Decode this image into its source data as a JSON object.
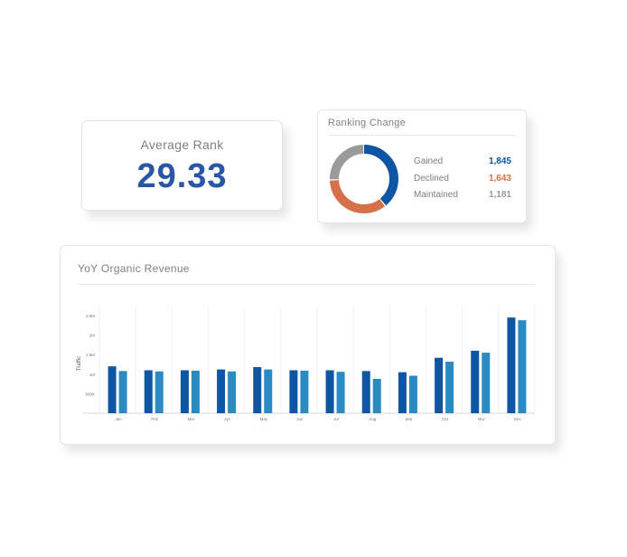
{
  "average_rank": {
    "title": "Average Rank",
    "value": "29.33"
  },
  "ranking_change": {
    "title": "Ranking Change",
    "items": [
      {
        "label": "Gained",
        "value": "1,845",
        "count": 1845,
        "color": "#0e55a4"
      },
      {
        "label": "Declined",
        "value": "1,643",
        "count": 1643,
        "color": "#d4714a"
      },
      {
        "label": "Maintained",
        "value": "1,181",
        "count": 1181,
        "color": "#9a9a9a"
      }
    ]
  },
  "revenue": {
    "title": "YoY Organic Revenue"
  },
  "chart_data": [
    {
      "type": "pie",
      "style": "donut",
      "title": "Ranking Change",
      "categories": [
        "Gained",
        "Declined",
        "Maintained"
      ],
      "values": [
        1845,
        1643,
        1181
      ],
      "colors": [
        "#0e55a4",
        "#d4714a",
        "#9a9a9a"
      ]
    },
    {
      "type": "bar",
      "title": "YoY Organic Revenue",
      "xlabel": "",
      "ylabel": "Traffic",
      "categories": [
        "Jan",
        "Feb",
        "Mar",
        "Apr",
        "May",
        "Jun",
        "Jul",
        "Aug",
        "Sep",
        "Oct",
        "Nov",
        "Dec"
      ],
      "yticks": [
        "500K",
        "1M",
        "1.5M",
        "2M",
        "2.5M"
      ],
      "ylim": [
        0,
        2500000
      ],
      "grid": true,
      "series": [
        {
          "color": "#0e55a4",
          "values": [
            1200000,
            1100000,
            1100000,
            1120000,
            1180000,
            1100000,
            1100000,
            1080000,
            1050000,
            1420000,
            1600000,
            2450000
          ]
        },
        {
          "color": "#2a8bc2",
          "values": [
            1080000,
            1070000,
            1090000,
            1070000,
            1120000,
            1090000,
            1060000,
            880000,
            960000,
            1320000,
            1550000,
            2380000
          ]
        }
      ]
    }
  ]
}
